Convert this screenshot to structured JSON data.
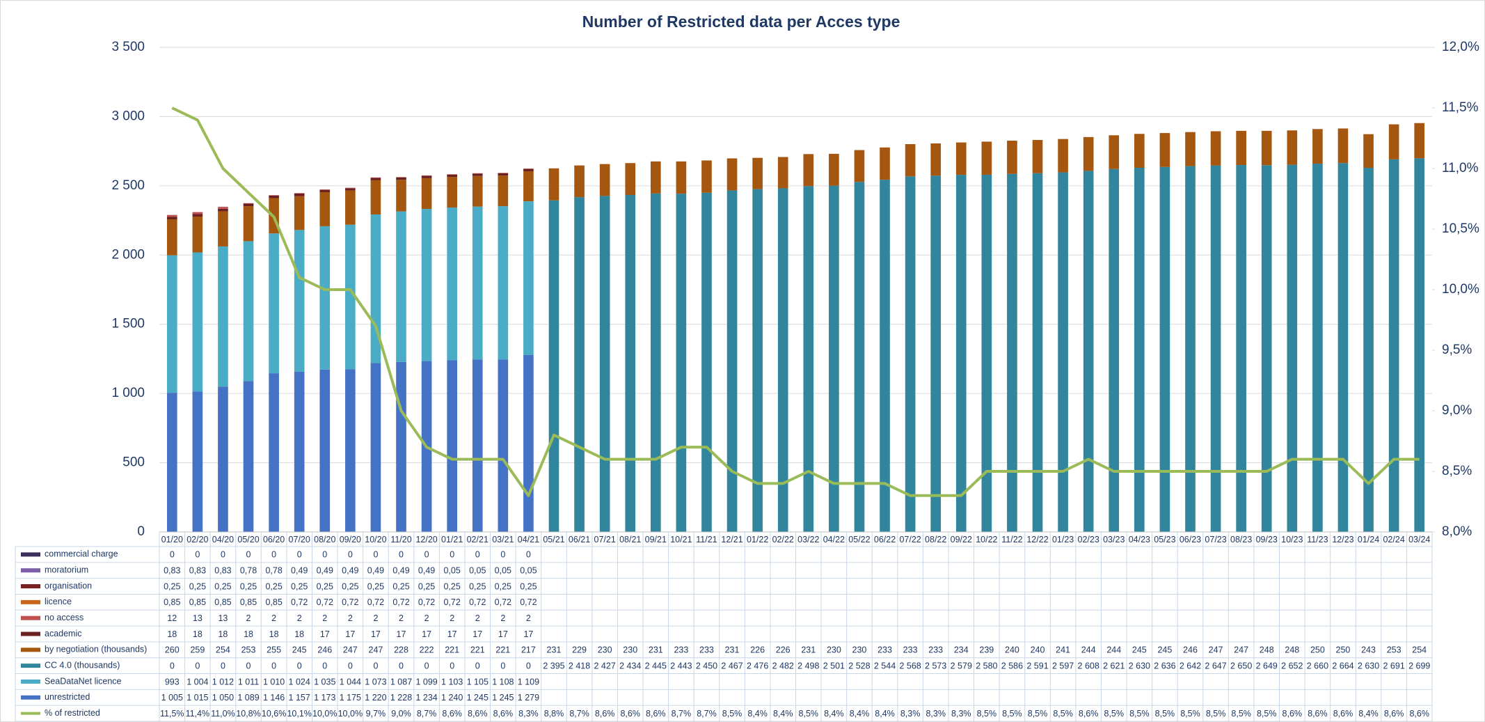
{
  "chart_data": {
    "type": "bar",
    "title": "Number of Restricted data per Acces type",
    "categories": [
      "01/20",
      "02/20",
      "04/20",
      "05/20",
      "06/20",
      "07/20",
      "08/20",
      "09/20",
      "10/20",
      "11/20",
      "12/20",
      "01/21",
      "02/21",
      "03/21",
      "04/21",
      "05/21",
      "06/21",
      "07/21",
      "08/21",
      "09/21",
      "10/21",
      "11/21",
      "12/21",
      "01/22",
      "02/22",
      "03/22",
      "04/22",
      "05/22",
      "06/22",
      "07/22",
      "08/22",
      "09/22",
      "10/22",
      "11/22",
      "12/22",
      "01/23",
      "02/23",
      "03/23",
      "04/23",
      "05/23",
      "06/23",
      "07/23",
      "08/23",
      "09/23",
      "10/23",
      "11/23",
      "12/23",
      "01/24",
      "02/24",
      "03/24"
    ],
    "ylim": [
      0,
      3500
    ],
    "yticks": [
      0,
      500,
      {
        "value": 1000,
        "label": "1 000"
      },
      {
        "value": 1500,
        "label": "1 500"
      },
      {
        "value": 2000,
        "label": "2 000"
      },
      {
        "value": 2500,
        "label": "2 500"
      },
      {
        "value": 3000,
        "label": "3 000"
      },
      {
        "value": 3500,
        "label": "3 500"
      }
    ],
    "y2lim": [
      8,
      12
    ],
    "y2ticks": [
      {
        "value": 8,
        "label": "8,0%"
      },
      {
        "value": 8.5,
        "label": "8,5%"
      },
      {
        "value": 9,
        "label": "9,0%"
      },
      {
        "value": 9.5,
        "label": "9,5%"
      },
      {
        "value": 10,
        "label": "10,0%"
      },
      {
        "value": 10.5,
        "label": "10,5%"
      },
      {
        "value": 11,
        "label": "11,0%"
      },
      {
        "value": 11.5,
        "label": "11,5%"
      },
      {
        "value": 12,
        "label": "12,0%"
      }
    ],
    "grid": true,
    "series": [
      {
        "name": "commercial charge",
        "color": "#3b2d5c",
        "values": [
          0,
          0,
          0,
          0,
          0,
          0,
          0,
          0,
          0,
          0,
          0,
          0,
          0,
          0,
          0,
          null,
          null,
          null,
          null,
          null,
          null,
          null,
          null,
          null,
          null,
          null,
          null,
          null,
          null,
          null,
          null,
          null,
          null,
          null,
          null,
          null,
          null,
          null,
          null,
          null,
          null,
          null,
          null,
          null,
          null,
          null,
          null,
          null,
          null,
          null
        ]
      },
      {
        "name": "moratorium",
        "color": "#7b5ea7",
        "values": [
          0.83,
          0.83,
          0.83,
          0.78,
          0.78,
          0.49,
          0.49,
          0.49,
          0.49,
          0.49,
          0.49,
          0.05,
          0.05,
          0.05,
          0.05,
          null,
          null,
          null,
          null,
          null,
          null,
          null,
          null,
          null,
          null,
          null,
          null,
          null,
          null,
          null,
          null,
          null,
          null,
          null,
          null,
          null,
          null,
          null,
          null,
          null,
          null,
          null,
          null,
          null,
          null,
          null,
          null,
          null,
          null,
          null
        ],
        "value_labels": [
          "0,83",
          "0,83",
          "0,83",
          "0,78",
          "0,78",
          "0,49",
          "0,49",
          "0,49",
          "0,49",
          "0,49",
          "0,49",
          "0,05",
          "0,05",
          "0,05",
          "0,05",
          null,
          null,
          null,
          null,
          null,
          null,
          null,
          null,
          null,
          null,
          null,
          null,
          null,
          null,
          null,
          null,
          null,
          null,
          null,
          null,
          null,
          null,
          null,
          null,
          null,
          null,
          null,
          null,
          null,
          null,
          null,
          null,
          null,
          null,
          null
        ]
      },
      {
        "name": "organisation",
        "color": "#7a1f1f",
        "values": [
          0.25,
          0.25,
          0.25,
          0.25,
          0.25,
          0.25,
          0.25,
          0.25,
          0.25,
          0.25,
          0.25,
          0.25,
          0.25,
          0.25,
          0.25,
          null,
          null,
          null,
          null,
          null,
          null,
          null,
          null,
          null,
          null,
          null,
          null,
          null,
          null,
          null,
          null,
          null,
          null,
          null,
          null,
          null,
          null,
          null,
          null,
          null,
          null,
          null,
          null,
          null,
          null,
          null,
          null,
          null,
          null,
          null
        ],
        "value_labels": [
          "0,25",
          "0,25",
          "0,25",
          "0,25",
          "0,25",
          "0,25",
          "0,25",
          "0,25",
          "0,25",
          "0,25",
          "0,25",
          "0,25",
          "0,25",
          "0,25",
          "0,25",
          null,
          null,
          null,
          null,
          null,
          null,
          null,
          null,
          null,
          null,
          null,
          null,
          null,
          null,
          null,
          null,
          null,
          null,
          null,
          null,
          null,
          null,
          null,
          null,
          null,
          null,
          null,
          null,
          null,
          null,
          null,
          null,
          null,
          null,
          null
        ]
      },
      {
        "name": "licence",
        "color": "#c8651b",
        "values": [
          0.85,
          0.85,
          0.85,
          0.85,
          0.85,
          0.72,
          0.72,
          0.72,
          0.72,
          0.72,
          0.72,
          0.72,
          0.72,
          0.72,
          0.72,
          null,
          null,
          null,
          null,
          null,
          null,
          null,
          null,
          null,
          null,
          null,
          null,
          null,
          null,
          null,
          null,
          null,
          null,
          null,
          null,
          null,
          null,
          null,
          null,
          null,
          null,
          null,
          null,
          null,
          null,
          null,
          null,
          null,
          null,
          null
        ],
        "value_labels": [
          "0,85",
          "0,85",
          "0,85",
          "0,85",
          "0,85",
          "0,72",
          "0,72",
          "0,72",
          "0,72",
          "0,72",
          "0,72",
          "0,72",
          "0,72",
          "0,72",
          "0,72",
          null,
          null,
          null,
          null,
          null,
          null,
          null,
          null,
          null,
          null,
          null,
          null,
          null,
          null,
          null,
          null,
          null,
          null,
          null,
          null,
          null,
          null,
          null,
          null,
          null,
          null,
          null,
          null,
          null,
          null,
          null,
          null,
          null,
          null,
          null
        ]
      },
      {
        "name": "no access",
        "color": "#c0504d",
        "values": [
          12,
          13,
          13,
          2,
          2,
          2,
          2,
          2,
          2,
          2,
          2,
          2,
          2,
          2,
          2,
          null,
          null,
          null,
          null,
          null,
          null,
          null,
          null,
          null,
          null,
          null,
          null,
          null,
          null,
          null,
          null,
          null,
          null,
          null,
          null,
          null,
          null,
          null,
          null,
          null,
          null,
          null,
          null,
          null,
          null,
          null,
          null,
          null,
          null,
          null
        ]
      },
      {
        "name": "academic",
        "color": "#6b2121",
        "values": [
          18,
          18,
          18,
          18,
          18,
          18,
          17,
          17,
          17,
          17,
          17,
          17,
          17,
          17,
          17,
          null,
          null,
          null,
          null,
          null,
          null,
          null,
          null,
          null,
          null,
          null,
          null,
          null,
          null,
          null,
          null,
          null,
          null,
          null,
          null,
          null,
          null,
          null,
          null,
          null,
          null,
          null,
          null,
          null,
          null,
          null,
          null,
          null,
          null,
          null
        ]
      },
      {
        "name": "by negotiation (thousands)",
        "color": "#a5560f",
        "values": [
          260,
          259,
          254,
          253,
          255,
          245,
          246,
          247,
          247,
          228,
          222,
          221,
          221,
          221,
          217,
          231,
          229,
          230,
          230,
          231,
          233,
          233,
          231,
          226,
          226,
          231,
          230,
          230,
          233,
          233,
          233,
          234,
          239,
          240,
          240,
          241,
          244,
          244,
          245,
          245,
          246,
          247,
          247,
          248,
          248,
          250,
          250,
          243,
          253,
          254
        ]
      },
      {
        "name": "CC 4.0 (thousands)",
        "color": "#31859c",
        "values": [
          0,
          0,
          0,
          0,
          0,
          0,
          0,
          0,
          0,
          0,
          0,
          0,
          0,
          0,
          0,
          2395,
          2418,
          2427,
          2434,
          2445,
          2443,
          2450,
          2467,
          2476,
          2482,
          2498,
          2501,
          2528,
          2544,
          2568,
          2573,
          2579,
          2580,
          2586,
          2591,
          2597,
          2608,
          2621,
          2630,
          2636,
          2642,
          2647,
          2650,
          2649,
          2652,
          2660,
          2664,
          2630,
          2691,
          2699
        ],
        "value_labels": [
          "0",
          "0",
          "0",
          "0",
          "0",
          "0",
          "0",
          "0",
          "0",
          "0",
          "0",
          "0",
          "0",
          "0",
          "0",
          "2 395",
          "2 418",
          "2 427",
          "2 434",
          "2 445",
          "2 443",
          "2 450",
          "2 467",
          "2 476",
          "2 482",
          "2 498",
          "2 501",
          "2 528",
          "2 544",
          "2 568",
          "2 573",
          "2 579",
          "2 580",
          "2 586",
          "2 591",
          "2 597",
          "2 608",
          "2 621",
          "2 630",
          "2 636",
          "2 642",
          "2 647",
          "2 650",
          "2 649",
          "2 652",
          "2 660",
          "2 664",
          "2 630",
          "2 691",
          "2 699"
        ]
      },
      {
        "name": "SeaDataNet licence",
        "color": "#4bacc6",
        "values": [
          993,
          1004,
          1012,
          1011,
          1010,
          1024,
          1035,
          1044,
          1073,
          1087,
          1099,
          1103,
          1105,
          1108,
          1109,
          null,
          null,
          null,
          null,
          null,
          null,
          null,
          null,
          null,
          null,
          null,
          null,
          null,
          null,
          null,
          null,
          null,
          null,
          null,
          null,
          null,
          null,
          null,
          null,
          null,
          null,
          null,
          null,
          null,
          null,
          null,
          null,
          null,
          null,
          null
        ],
        "value_labels": [
          "993",
          "1 004",
          "1 012",
          "1 011",
          "1 010",
          "1 024",
          "1 035",
          "1 044",
          "1 073",
          "1 087",
          "1 099",
          "1 103",
          "1 105",
          "1 108",
          "1 109",
          null,
          null,
          null,
          null,
          null,
          null,
          null,
          null,
          null,
          null,
          null,
          null,
          null,
          null,
          null,
          null,
          null,
          null,
          null,
          null,
          null,
          null,
          null,
          null,
          null,
          null,
          null,
          null,
          null,
          null,
          null,
          null,
          null,
          null,
          null
        ]
      },
      {
        "name": "unrestricted",
        "color": "#4472c4",
        "values": [
          1005,
          1015,
          1050,
          1089,
          1146,
          1157,
          1173,
          1175,
          1220,
          1228,
          1234,
          1240,
          1245,
          1245,
          1279,
          null,
          null,
          null,
          null,
          null,
          null,
          null,
          null,
          null,
          null,
          null,
          null,
          null,
          null,
          null,
          null,
          null,
          null,
          null,
          null,
          null,
          null,
          null,
          null,
          null,
          null,
          null,
          null,
          null,
          null,
          null,
          null,
          null,
          null,
          null
        ],
        "value_labels": [
          "1 005",
          "1 015",
          "1 050",
          "1 089",
          "1 146",
          "1 157",
          "1 173",
          "1 175",
          "1 220",
          "1 228",
          "1 234",
          "1 240",
          "1 245",
          "1 245",
          "1 279",
          null,
          null,
          null,
          null,
          null,
          null,
          null,
          null,
          null,
          null,
          null,
          null,
          null,
          null,
          null,
          null,
          null,
          null,
          null,
          null,
          null,
          null,
          null,
          null,
          null,
          null,
          null,
          null,
          null,
          null,
          null,
          null,
          null,
          null,
          null
        ]
      },
      {
        "name": "% of restricted",
        "color": "#9bbb59",
        "type": "line",
        "axis": "y2",
        "values": [
          11.5,
          11.4,
          11.0,
          10.8,
          10.6,
          10.1,
          10.0,
          10.0,
          9.7,
          9.0,
          8.7,
          8.6,
          8.6,
          8.6,
          8.3,
          8.8,
          8.7,
          8.6,
          8.6,
          8.6,
          8.7,
          8.7,
          8.5,
          8.4,
          8.4,
          8.5,
          8.4,
          8.4,
          8.4,
          8.3,
          8.3,
          8.3,
          8.5,
          8.5,
          8.5,
          8.5,
          8.6,
          8.5,
          8.5,
          8.5,
          8.5,
          8.5,
          8.5,
          8.5,
          8.6,
          8.6,
          8.6,
          8.4,
          8.6,
          8.6
        ],
        "value_labels": [
          "11,5%",
          "11,4%",
          "11,0%",
          "10,8%",
          "10,6%",
          "10,1%",
          "10,0%",
          "10,0%",
          "9,7%",
          "9,0%",
          "8,7%",
          "8,6%",
          "8,6%",
          "8,6%",
          "8,3%",
          "8,8%",
          "8,7%",
          "8,6%",
          "8,6%",
          "8,6%",
          "8,7%",
          "8,7%",
          "8,5%",
          "8,4%",
          "8,4%",
          "8,5%",
          "8,4%",
          "8,4%",
          "8,4%",
          "8,3%",
          "8,3%",
          "8,3%",
          "8,5%",
          "8,5%",
          "8,5%",
          "8,5%",
          "8,6%",
          "8,5%",
          "8,5%",
          "8,5%",
          "8,5%",
          "8,5%",
          "8,5%",
          "8,5%",
          "8,6%",
          "8,6%",
          "8,6%",
          "8,4%",
          "8,6%",
          "8,6%"
        ]
      }
    ]
  }
}
